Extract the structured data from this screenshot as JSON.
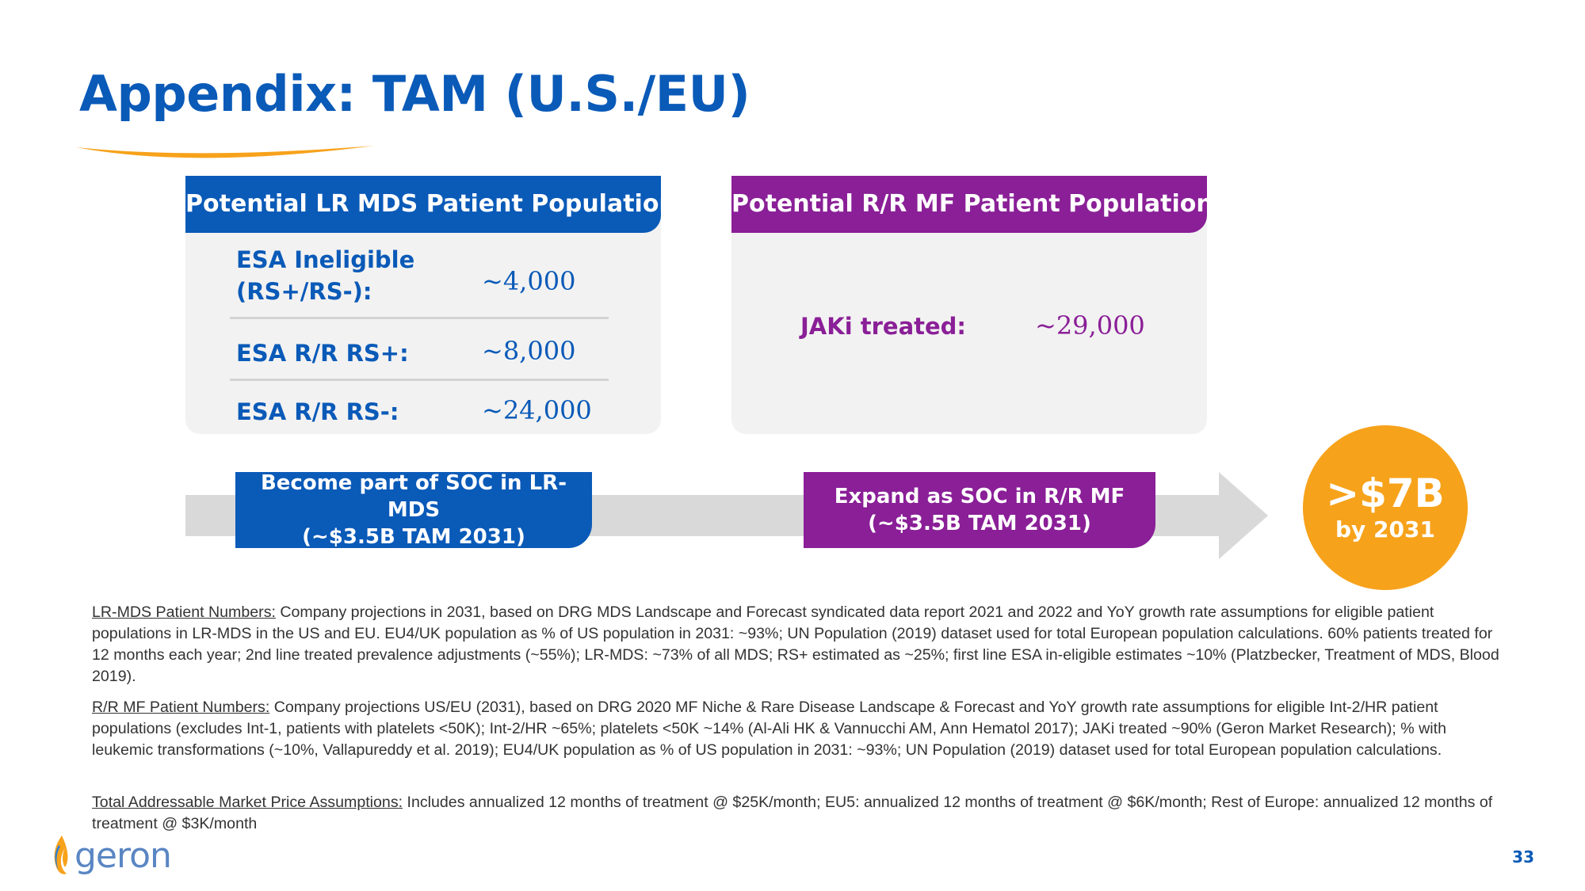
{
  "title": "Appendix: TAM (U.S./EU)",
  "lr_mds": {
    "header": "Potential LR MDS Patient Population",
    "rows": [
      {
        "label": "ESA Ineligible (RS+/RS-):",
        "value": "~4,000"
      },
      {
        "label": "ESA R/R RS+:",
        "value": "~8,000"
      },
      {
        "label": "ESA R/R RS-:",
        "value": "~24,000"
      }
    ]
  },
  "rr_mf": {
    "header": "Potential R/R MF Patient Population",
    "label": "JAKi treated:",
    "value": "~29,000"
  },
  "pills": {
    "lr_line1": "Become part of SOC in LR-MDS",
    "lr_line2": "(~$3.5B TAM 2031)",
    "mf_line1": "Expand as SOC in R/R MF",
    "mf_line2": "(~$3.5B TAM 2031)"
  },
  "tam": {
    "value": ">$7B",
    "sub": "by 2031"
  },
  "notes": [
    {
      "lead": "LR-MDS Patient Numbers:",
      "text": " Company projections in 2031, based on DRG MDS Landscape and Forecast syndicated data report 2021 and 2022 and YoY growth rate assumptions for eligible patient populations in LR-MDS in the US and EU.  EU4/UK population as % of US population in 2031: ~93%; UN Population (2019) dataset used for total European population calculations. 60% patients treated for 12 months each year; 2nd line treated prevalence adjustments (~55%); LR-MDS: ~73% of all MDS; RS+ estimated as ~25%; first line ESA in-eligible estimates ~10% (Platzbecker, Treatment of MDS, Blood 2019)."
    },
    {
      "lead": "R/R MF Patient Numbers:",
      "text": " Company projections US/EU (2031), based on DRG 2020 MF Niche & Rare Disease Landscape & Forecast  and YoY growth rate assumptions for eligible Int-2/HR patient populations (excludes Int-1, patients with platelets <50K);  Int-2/HR ~65%; platelets <50K  ~14% (Al-Ali HK & Vannucchi AM, Ann Hematol 2017); JAKi treated ~90% (Geron Market Research); % with leukemic transformations (~10%, Vallapureddy et al. 2019); EU4/UK population as % of US population in 2031: ~93%; UN Population (2019) dataset used for total European population calculations."
    },
    {
      "lead": "Total Addressable Market Price Assumptions:",
      "text": " Includes annualized 12 months of treatment @ $25K/month; EU5: annualized 12 months of treatment @ $6K/month; Rest of Europe: annualized 12 months of treatment @ $3K/month"
    }
  ],
  "logo_text": "geron",
  "page_number": "33",
  "colors": {
    "brand_blue": "#0a5ab8",
    "brand_purple": "#8a1f97",
    "accent_orange": "#f7a21b",
    "arrow_gray": "#d9d9d9"
  }
}
